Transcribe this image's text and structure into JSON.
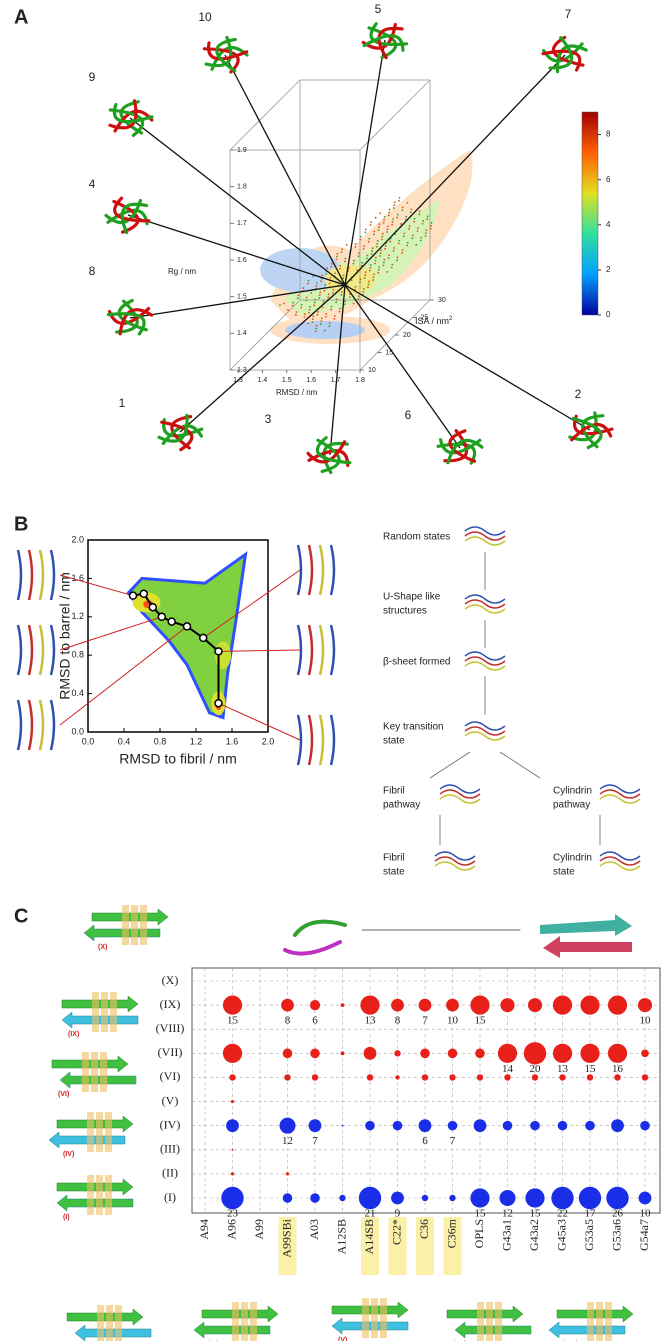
{
  "panel_a": {
    "label": "A",
    "structures": [
      10,
      5,
      7,
      9,
      4,
      8,
      1,
      3,
      6,
      2
    ],
    "rg_label": "Rg / nm",
    "rmsd_label": "RMSD / nm",
    "isa_label": "ISA / nm",
    "isa_sup": "2",
    "rg_ticks": [
      1.3,
      1.4,
      1.5,
      1.6,
      1.7,
      1.8,
      1.9
    ],
    "rmsd_ticks": [
      1.3,
      1.4,
      1.5,
      1.6,
      1.7,
      1.8
    ],
    "isa_ticks": [
      10,
      15,
      20,
      25,
      30
    ],
    "colorbar_ticks": [
      0,
      2,
      4,
      6,
      8
    ],
    "colorbar_lim": [
      0,
      9
    ]
  },
  "panel_b": {
    "label": "B",
    "type": "line",
    "xlabel": "RMSD to fibril / nm",
    "ylabel": "RMSD to barrel / nm",
    "xlim": [
      0,
      2
    ],
    "ylim": [
      0,
      2
    ],
    "xticks": [
      {
        "value": 0,
        "label": "0.0"
      },
      0.4,
      0.8,
      1.2,
      1.6,
      {
        "value": 2,
        "label": "2.0"
      }
    ],
    "yticks": [
      {
        "value": 0,
        "label": "0.0"
      },
      0.4,
      0.8,
      1.2,
      1.6,
      {
        "value": 2,
        "label": "2.0"
      }
    ],
    "path_x": [
      0.5,
      0.62,
      0.72,
      0.82,
      0.93,
      1.1,
      1.28,
      1.45,
      1.45
    ],
    "path_y": [
      1.42,
      1.44,
      1.3,
      1.2,
      1.15,
      1.1,
      0.98,
      0.84,
      0.3
    ],
    "states": [
      "Random states",
      "U-Shape like",
      "structures",
      "β-sheet formed",
      "Key transition",
      "state",
      "Fibril",
      "pathway",
      "Cylindrin",
      "pathway",
      "Fibril",
      "state",
      "Cylindrin",
      "state"
    ]
  },
  "panel_c": {
    "label": "C",
    "type": "scatter",
    "categories": [
      "A94",
      "A96",
      "A99",
      "A99SBi",
      "A03",
      "A12SB",
      "A14SB",
      "C22*",
      "C36",
      "C36m",
      "OPLS",
      "G43a1",
      "G43a2",
      "G45a3",
      "G53a5",
      "G53a6",
      "G54a7"
    ],
    "highlighted": [
      false,
      false,
      false,
      true,
      false,
      false,
      true,
      true,
      true,
      true,
      false,
      false,
      false,
      false,
      false,
      false,
      false
    ],
    "rows": [
      {
        "name": "(X)",
        "color": "#e8201a",
        "sizes": [
          0,
          0,
          0,
          0,
          0,
          0,
          0,
          0,
          0,
          0,
          0,
          0,
          0,
          0,
          0,
          0,
          0
        ],
        "labels": [
          null,
          null,
          null,
          null,
          null,
          null,
          null,
          null,
          null,
          null,
          null,
          null,
          null,
          null,
          null,
          null,
          null
        ]
      },
      {
        "name": "(IX)",
        "color": "#e8201a",
        "sizes": [
          0,
          3,
          0,
          2,
          1.6,
          0.6,
          3,
          2,
          2,
          2,
          3,
          2.2,
          2.2,
          3,
          3,
          3,
          2.2
        ],
        "labels": [
          null,
          15,
          null,
          8,
          6,
          null,
          13,
          8,
          7,
          10,
          15,
          null,
          null,
          null,
          null,
          null,
          10
        ]
      },
      {
        "name": "(VIII)",
        "color": "#e8201a",
        "sizes": [
          0,
          0,
          0,
          0,
          0,
          0,
          0,
          0,
          0,
          0,
          0,
          0,
          0,
          0,
          0,
          0,
          0
        ],
        "labels": [
          null,
          null,
          null,
          null,
          null,
          null,
          null,
          null,
          null,
          null,
          null,
          null,
          null,
          null,
          null,
          null,
          null
        ]
      },
      {
        "name": "(VII)",
        "color": "#e8201a",
        "sizes": [
          0,
          3,
          0,
          1.5,
          1.5,
          0.6,
          2,
          1,
          1.5,
          1.5,
          1.5,
          3,
          3.5,
          3,
          3,
          3,
          1.2
        ],
        "labels": [
          null,
          null,
          null,
          null,
          null,
          null,
          null,
          null,
          null,
          null,
          null,
          14,
          20,
          13,
          15,
          16,
          null
        ]
      },
      {
        "name": "(VI)",
        "color": "#e8201a",
        "sizes": [
          0,
          1,
          0,
          1,
          1,
          0,
          1,
          0.7,
          1,
          1,
          1,
          1,
          1,
          1,
          1,
          1,
          1
        ],
        "labels": [
          null,
          null,
          null,
          null,
          null,
          null,
          null,
          null,
          null,
          null,
          null,
          null,
          null,
          null,
          null,
          null,
          null
        ]
      },
      {
        "name": "(V)",
        "color": "#e8201a",
        "sizes": [
          0,
          0.5,
          0,
          0,
          0,
          0,
          0,
          0,
          0,
          0,
          0,
          0,
          0,
          0,
          0,
          0,
          0
        ],
        "labels": [
          null,
          null,
          null,
          null,
          null,
          null,
          null,
          null,
          null,
          null,
          null,
          null,
          null,
          null,
          null,
          null,
          null
        ]
      },
      {
        "name": "(IV)",
        "color": "#1a2ee8",
        "sizes": [
          0,
          2,
          0,
          2.5,
          2,
          0.3,
          1.5,
          1.5,
          2,
          1.5,
          2,
          1.5,
          1.5,
          1.5,
          1.5,
          2,
          1.5
        ],
        "labels": [
          null,
          null,
          null,
          12,
          7,
          null,
          null,
          null,
          6,
          7,
          null,
          null,
          null,
          null,
          null,
          null,
          null
        ]
      },
      {
        "name": "(III)",
        "color": "#e8201a",
        "sizes": [
          0,
          0.3,
          0,
          0,
          0,
          0,
          0,
          0,
          0,
          0,
          0,
          0,
          0,
          0,
          0,
          0,
          0
        ],
        "labels": [
          null,
          null,
          null,
          null,
          null,
          null,
          null,
          null,
          null,
          null,
          null,
          null,
          null,
          null,
          null,
          null,
          null
        ]
      },
      {
        "name": "(II)",
        "color": "#e8201a",
        "sizes": [
          0,
          0.5,
          0,
          0.5,
          0,
          0,
          0,
          0,
          0,
          0,
          0,
          0,
          0,
          0,
          0,
          0,
          0
        ],
        "labels": [
          null,
          null,
          null,
          null,
          null,
          null,
          null,
          null,
          null,
          null,
          null,
          null,
          null,
          null,
          null,
          null,
          null
        ]
      },
      {
        "name": "(I)",
        "color": "#1a2ee8",
        "sizes": [
          0,
          3.5,
          0,
          1.5,
          1.5,
          1,
          3.5,
          2,
          1,
          1,
          3,
          2.5,
          3,
          3.5,
          3.5,
          3.5,
          2
        ],
        "labels": [
          null,
          23,
          null,
          null,
          null,
          null,
          21,
          9,
          null,
          null,
          15,
          12,
          15,
          22,
          17,
          26,
          10
        ]
      }
    ],
    "cartoons": [
      "(X)",
      "(IX)",
      "(VI)",
      "(IV)",
      "(I)",
      "(II)",
      "(III)",
      "(V)",
      "(VII)",
      "(VIII)"
    ]
  }
}
